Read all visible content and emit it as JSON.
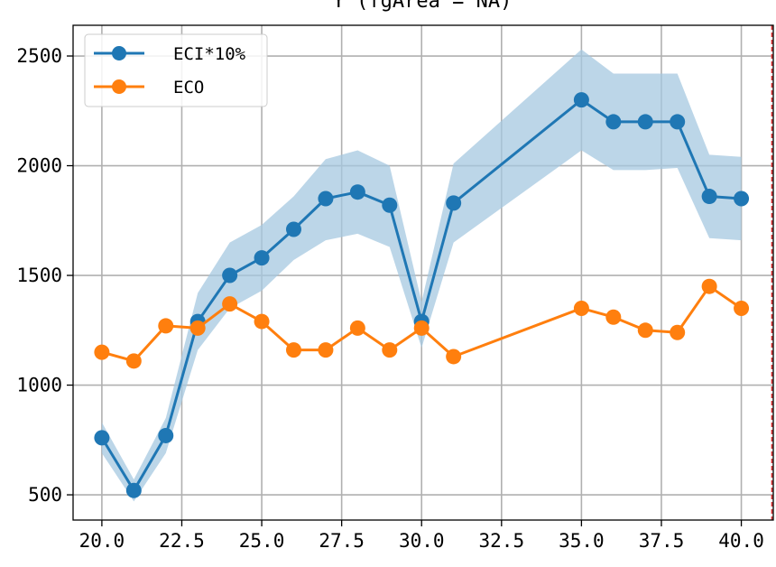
{
  "chart_data": {
    "type": "line",
    "title": "Y (fgArea = NA)",
    "xlabel": "",
    "ylabel": "",
    "xlim": [
      19.1,
      41.0
    ],
    "ylim": [
      385,
      2640
    ],
    "x_ticks": [
      "20.0",
      "22.5",
      "25.0",
      "27.5",
      "30.0",
      "32.5",
      "35.0",
      "37.5",
      "40.0"
    ],
    "y_ticks": [
      "500",
      "1000",
      "1500",
      "2000",
      "2500"
    ],
    "grid": true,
    "legend_position": "top-left",
    "vertical_line": {
      "x": 41.0,
      "style": "dashed",
      "color": "#d62728"
    },
    "series": [
      {
        "name": "ECI*10%",
        "color": "#1f77b4",
        "band_color": "#a6c8e0",
        "x": [
          20,
          21,
          22,
          23,
          24,
          25,
          26,
          27,
          28,
          29,
          30,
          31,
          35,
          36,
          37,
          38,
          39,
          40
        ],
        "y": [
          760,
          520,
          770,
          1290,
          1500,
          1580,
          1710,
          1850,
          1880,
          1820,
          1290,
          1830,
          2300,
          2200,
          2200,
          2200,
          1860,
          1850
        ],
        "lower": [
          690,
          470,
          690,
          1160,
          1350,
          1430,
          1570,
          1660,
          1690,
          1630,
          1170,
          1650,
          2070,
          1980,
          1980,
          1990,
          1670,
          1660
        ],
        "upper": [
          830,
          570,
          850,
          1420,
          1650,
          1730,
          1860,
          2030,
          2070,
          2000,
          1380,
          2010,
          2530,
          2420,
          2420,
          2420,
          2050,
          2040
        ]
      },
      {
        "name": "ECO",
        "color": "#ff7f0e",
        "x": [
          20,
          21,
          22,
          23,
          24,
          25,
          26,
          27,
          28,
          29,
          30,
          31,
          35,
          36,
          37,
          38,
          39,
          40
        ],
        "y": [
          1150,
          1110,
          1270,
          1260,
          1370,
          1290,
          1160,
          1160,
          1260,
          1160,
          1260,
          1130,
          1350,
          1310,
          1250,
          1240,
          1450,
          1350
        ]
      }
    ]
  }
}
